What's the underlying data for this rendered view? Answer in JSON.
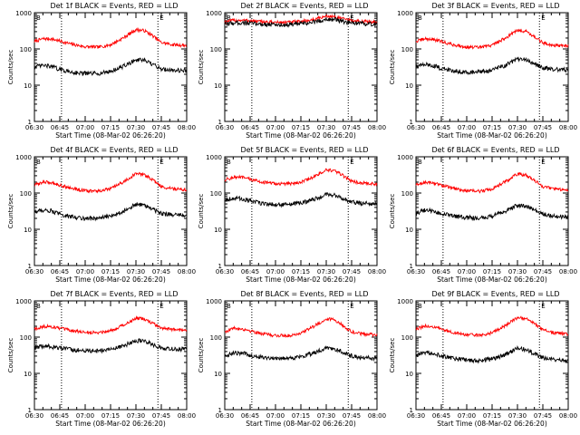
{
  "page": {
    "background": "#ffffff"
  },
  "colors": {
    "events": "#000000",
    "lld": "#ff0000",
    "axis": "#000000"
  },
  "chart_data": [
    {
      "type": "line",
      "title": "Det 1f BLACK = Events, RED = LLD",
      "xlabel": "Start Time (08-Mar-02 06:26:20)",
      "ylabel": "Counts/sec",
      "scale": "log",
      "ylim": [
        1,
        1000
      ],
      "xlim": [
        "06:30",
        "08:00"
      ],
      "x_ticks": [
        "06:30",
        "06:45",
        "07:00",
        "07:15",
        "07:30",
        "07:45",
        "08:00"
      ],
      "y_ticks": [
        "1",
        "10",
        "100",
        "1000"
      ],
      "markers": [
        {
          "label": "B",
          "x": "06:30"
        },
        {
          "label": "E",
          "x": "07:43"
        }
      ],
      "dotted_verticals": [
        "06:46",
        "07:43"
      ],
      "series": [
        {
          "name": "LLD",
          "color": "#ff0000",
          "x": [
            "06:30",
            "06:35",
            "06:40",
            "06:45",
            "06:52",
            "07:00",
            "07:08",
            "07:15",
            "07:22",
            "07:30",
            "07:35",
            "07:40",
            "07:45",
            "07:52",
            "08:00"
          ],
          "values": [
            160,
            190,
            190,
            165,
            135,
            115,
            112,
            130,
            195,
            340,
            320,
            230,
            150,
            130,
            125
          ]
        },
        {
          "name": "Events",
          "color": "#000000",
          "x": [
            "06:30",
            "06:35",
            "06:40",
            "06:45",
            "06:52",
            "07:00",
            "07:08",
            "07:15",
            "07:22",
            "07:30",
            "07:35",
            "07:40",
            "07:45",
            "07:52",
            "08:00"
          ],
          "values": [
            32,
            35,
            33,
            27,
            23,
            21,
            21,
            24,
            32,
            50,
            48,
            37,
            28,
            26,
            25
          ]
        }
      ]
    },
    {
      "type": "line",
      "title": "Det 2f BLACK = Events, RED = LLD",
      "xlabel": "Start Time (08-Mar-02 06:26:20)",
      "ylabel": "Counts/sec",
      "scale": "log",
      "ylim": [
        1,
        1000
      ],
      "xlim": [
        "06:30",
        "08:00"
      ],
      "x_ticks": [
        "06:30",
        "06:45",
        "07:00",
        "07:15",
        "07:30",
        "07:45",
        "08:00"
      ],
      "y_ticks": [
        "1",
        "10",
        "100",
        "1000"
      ],
      "markers": [
        {
          "label": "B",
          "x": "06:30"
        },
        {
          "label": "E",
          "x": "07:43"
        }
      ],
      "dotted_verticals": [
        "06:46",
        "07:43"
      ],
      "series": [
        {
          "name": "LLD",
          "color": "#ff0000",
          "x": [
            "06:30",
            "06:35",
            "06:40",
            "06:45",
            "06:52",
            "07:00",
            "07:08",
            "07:15",
            "07:22",
            "07:30",
            "07:35",
            "07:40",
            "07:45",
            "07:52",
            "08:00"
          ],
          "values": [
            560,
            610,
            620,
            600,
            560,
            540,
            545,
            570,
            640,
            800,
            780,
            680,
            600,
            570,
            560
          ]
        },
        {
          "name": "Events",
          "color": "#000000",
          "x": [
            "06:30",
            "06:35",
            "06:40",
            "06:45",
            "06:52",
            "07:00",
            "07:08",
            "07:15",
            "07:22",
            "07:30",
            "07:35",
            "07:40",
            "07:45",
            "07:52",
            "08:00"
          ],
          "values": [
            480,
            520,
            530,
            510,
            480,
            465,
            465,
            490,
            540,
            660,
            650,
            570,
            510,
            490,
            480
          ]
        }
      ]
    },
    {
      "type": "line",
      "title": "Det 3f BLACK = Events, RED = LLD",
      "xlabel": "Start Time (08-Mar-02 06:26:20)",
      "ylabel": "Counts/sec",
      "scale": "log",
      "ylim": [
        1,
        1000
      ],
      "xlim": [
        "06:30",
        "08:00"
      ],
      "x_ticks": [
        "06:30",
        "06:45",
        "07:00",
        "07:15",
        "07:30",
        "07:45",
        "08:00"
      ],
      "y_ticks": [
        "1",
        "10",
        "100",
        "1000"
      ],
      "markers": [
        {
          "label": "B",
          "x": "06:30"
        },
        {
          "label": "E",
          "x": "07:43"
        }
      ],
      "dotted_verticals": [
        "06:46",
        "07:43"
      ],
      "series": [
        {
          "name": "LLD",
          "color": "#ff0000",
          "x": [
            "06:30",
            "06:35",
            "06:40",
            "06:45",
            "06:52",
            "07:00",
            "07:08",
            "07:15",
            "07:22",
            "07:30",
            "07:35",
            "07:40",
            "07:45",
            "07:52",
            "08:00"
          ],
          "values": [
            160,
            190,
            185,
            160,
            130,
            112,
            110,
            128,
            190,
            330,
            310,
            220,
            145,
            125,
            120
          ]
        },
        {
          "name": "Events",
          "color": "#000000",
          "x": [
            "06:30",
            "06:35",
            "06:40",
            "06:45",
            "06:52",
            "07:00",
            "07:08",
            "07:15",
            "07:22",
            "07:30",
            "07:35",
            "07:40",
            "07:45",
            "07:52",
            "08:00"
          ],
          "values": [
            33,
            37,
            35,
            29,
            25,
            23,
            23,
            26,
            34,
            52,
            50,
            39,
            30,
            27,
            26
          ]
        }
      ]
    },
    {
      "type": "line",
      "title": "Det 4f BLACK = Events, RED = LLD",
      "xlabel": "Start Time (08-Mar-02 06:26:20)",
      "ylabel": "Counts/sec",
      "scale": "log",
      "ylim": [
        1,
        1000
      ],
      "xlim": [
        "06:30",
        "08:00"
      ],
      "x_ticks": [
        "06:30",
        "06:45",
        "07:00",
        "07:15",
        "07:30",
        "07:45",
        "08:00"
      ],
      "y_ticks": [
        "1",
        "10",
        "100",
        "1000"
      ],
      "markers": [
        {
          "label": "B",
          "x": "06:30"
        },
        {
          "label": "E",
          "x": "07:43"
        }
      ],
      "dotted_verticals": [
        "06:46",
        "07:43"
      ],
      "series": [
        {
          "name": "LLD",
          "color": "#ff0000",
          "x": [
            "06:30",
            "06:35",
            "06:40",
            "06:45",
            "06:52",
            "07:00",
            "07:08",
            "07:15",
            "07:22",
            "07:30",
            "07:35",
            "07:40",
            "07:45",
            "07:52",
            "08:00"
          ],
          "values": [
            165,
            200,
            195,
            165,
            135,
            115,
            112,
            130,
            195,
            340,
            320,
            230,
            150,
            130,
            125
          ]
        },
        {
          "name": "Events",
          "color": "#000000",
          "x": [
            "06:30",
            "06:35",
            "06:40",
            "06:45",
            "06:52",
            "07:00",
            "07:08",
            "07:15",
            "07:22",
            "07:30",
            "07:35",
            "07:40",
            "07:45",
            "07:52",
            "08:00"
          ],
          "values": [
            30,
            34,
            32,
            26,
            22,
            20,
            20,
            23,
            31,
            48,
            46,
            36,
            27,
            25,
            24
          ]
        }
      ]
    },
    {
      "type": "line",
      "title": "Det 5f BLACK = Events, RED = LLD",
      "xlabel": "Start Time (08-Mar-02 06:26:20)",
      "ylabel": "Counts/sec",
      "scale": "log",
      "ylim": [
        1,
        1000
      ],
      "xlim": [
        "06:30",
        "08:00"
      ],
      "x_ticks": [
        "06:30",
        "06:45",
        "07:00",
        "07:15",
        "07:30",
        "07:45",
        "08:00"
      ],
      "y_ticks": [
        "1",
        "10",
        "100",
        "1000"
      ],
      "markers": [
        {
          "label": "B",
          "x": "06:30"
        },
        {
          "label": "E",
          "x": "07:43"
        }
      ],
      "dotted_verticals": [
        "06:46",
        "07:43"
      ],
      "series": [
        {
          "name": "LLD",
          "color": "#ff0000",
          "x": [
            "06:30",
            "06:35",
            "06:40",
            "06:45",
            "06:52",
            "07:00",
            "07:08",
            "07:15",
            "07:22",
            "07:30",
            "07:35",
            "07:40",
            "07:45",
            "07:52",
            "08:00"
          ],
          "values": [
            230,
            270,
            270,
            240,
            200,
            180,
            180,
            200,
            270,
            430,
            410,
            300,
            210,
            185,
            175
          ]
        },
        {
          "name": "Events",
          "color": "#000000",
          "x": [
            "06:30",
            "06:35",
            "06:40",
            "06:45",
            "06:52",
            "07:00",
            "07:08",
            "07:15",
            "07:22",
            "07:30",
            "07:35",
            "07:40",
            "07:45",
            "07:52",
            "08:00"
          ],
          "values": [
            65,
            72,
            70,
            60,
            52,
            48,
            48,
            53,
            65,
            90,
            88,
            70,
            56,
            52,
            50
          ]
        }
      ]
    },
    {
      "type": "line",
      "title": "Det 6f BLACK = Events, RED = LLD",
      "xlabel": "Start Time (08-Mar-02 06:26:20)",
      "ylabel": "Counts/sec",
      "scale": "log",
      "ylim": [
        1,
        1000
      ],
      "xlim": [
        "06:30",
        "08:00"
      ],
      "x_ticks": [
        "06:30",
        "06:45",
        "07:00",
        "07:15",
        "07:30",
        "07:45",
        "08:00"
      ],
      "y_ticks": [
        "1",
        "10",
        "100",
        "1000"
      ],
      "markers": [
        {
          "label": "B",
          "x": "06:30"
        },
        {
          "label": "E",
          "x": "07:43"
        }
      ],
      "dotted_verticals": [
        "06:46",
        "07:43"
      ],
      "series": [
        {
          "name": "LLD",
          "color": "#ff0000",
          "x": [
            "06:30",
            "06:35",
            "06:40",
            "06:45",
            "06:52",
            "07:00",
            "07:08",
            "07:15",
            "07:22",
            "07:30",
            "07:35",
            "07:40",
            "07:45",
            "07:52",
            "08:00"
          ],
          "values": [
            165,
            195,
            190,
            165,
            135,
            115,
            112,
            130,
            195,
            335,
            315,
            225,
            150,
            130,
            122
          ]
        },
        {
          "name": "Events",
          "color": "#000000",
          "x": [
            "06:30",
            "06:35",
            "06:40",
            "06:45",
            "06:52",
            "07:00",
            "07:08",
            "07:15",
            "07:22",
            "07:30",
            "07:35",
            "07:40",
            "07:45",
            "07:52",
            "08:00"
          ],
          "values": [
            28,
            33,
            32,
            27,
            23,
            21,
            20,
            23,
            30,
            46,
            44,
            34,
            26,
            23,
            22
          ]
        }
      ]
    },
    {
      "type": "line",
      "title": "Det 7f BLACK = Events, RED = LLD",
      "xlabel": "Start Time (08-Mar-02 06:26:20)",
      "ylabel": "Counts/sec",
      "scale": "log",
      "ylim": [
        1,
        1000
      ],
      "xlim": [
        "06:30",
        "08:00"
      ],
      "x_ticks": [
        "06:30",
        "06:45",
        "07:00",
        "07:15",
        "07:30",
        "07:45",
        "08:00"
      ],
      "y_ticks": [
        "1",
        "10",
        "100",
        "1000"
      ],
      "markers": [
        {
          "label": "B",
          "x": "06:30"
        },
        {
          "label": "E",
          "x": "07:43"
        }
      ],
      "dotted_verticals": [
        "06:46",
        "07:43"
      ],
      "series": [
        {
          "name": "LLD",
          "color": "#ff0000",
          "x": [
            "06:30",
            "06:35",
            "06:40",
            "06:45",
            "06:52",
            "07:00",
            "07:08",
            "07:15",
            "07:22",
            "07:30",
            "07:35",
            "07:40",
            "07:45",
            "07:52",
            "08:00"
          ],
          "values": [
            170,
            195,
            195,
            175,
            150,
            135,
            135,
            150,
            210,
            330,
            315,
            240,
            175,
            160,
            155
          ]
        },
        {
          "name": "Events",
          "color": "#000000",
          "x": [
            "06:30",
            "06:35",
            "06:40",
            "06:45",
            "06:52",
            "07:00",
            "07:08",
            "07:15",
            "07:22",
            "07:30",
            "07:35",
            "07:40",
            "07:45",
            "07:52",
            "08:00"
          ],
          "values": [
            50,
            56,
            55,
            50,
            45,
            42,
            42,
            46,
            56,
            80,
            78,
            62,
            50,
            47,
            46
          ]
        }
      ]
    },
    {
      "type": "line",
      "title": "Det 8f BLACK = Events, RED = LLD",
      "xlabel": "Start Time (08-Mar-02 06:26:20)",
      "ylabel": "Counts/sec",
      "scale": "log",
      "ylim": [
        1,
        1000
      ],
      "xlim": [
        "06:30",
        "08:00"
      ],
      "x_ticks": [
        "06:30",
        "06:45",
        "07:00",
        "07:15",
        "07:30",
        "07:45",
        "08:00"
      ],
      "y_ticks": [
        "1",
        "10",
        "100",
        "1000"
      ],
      "markers": [
        {
          "label": "B",
          "x": "06:30"
        },
        {
          "label": "E",
          "x": "07:43"
        }
      ],
      "dotted_verticals": [
        "06:46",
        "07:43"
      ],
      "series": [
        {
          "name": "LLD",
          "color": "#ff0000",
          "x": [
            "06:30",
            "06:35",
            "06:40",
            "06:45",
            "06:52",
            "07:00",
            "07:08",
            "07:15",
            "07:22",
            "07:30",
            "07:35",
            "07:40",
            "07:45",
            "07:52",
            "08:00"
          ],
          "values": [
            140,
            175,
            170,
            150,
            125,
            110,
            110,
            130,
            190,
            320,
            300,
            210,
            140,
            120,
            115
          ]
        },
        {
          "name": "Events",
          "color": "#000000",
          "x": [
            "06:30",
            "06:35",
            "06:40",
            "06:45",
            "06:52",
            "07:00",
            "07:08",
            "07:15",
            "07:22",
            "07:30",
            "07:35",
            "07:40",
            "07:45",
            "07:52",
            "08:00"
          ],
          "values": [
            30,
            36,
            36,
            32,
            28,
            26,
            26,
            29,
            36,
            50,
            48,
            38,
            30,
            27,
            26
          ]
        }
      ]
    },
    {
      "type": "line",
      "title": "Det 9f BLACK = Events, RED = LLD",
      "xlabel": "Start Time (08-Mar-02 06:26:20)",
      "ylabel": "Counts/sec",
      "scale": "log",
      "ylim": [
        1,
        1000
      ],
      "xlim": [
        "06:30",
        "08:00"
      ],
      "x_ticks": [
        "06:30",
        "06:45",
        "07:00",
        "07:15",
        "07:30",
        "07:45",
        "08:00"
      ],
      "y_ticks": [
        "1",
        "10",
        "100",
        "1000"
      ],
      "markers": [
        {
          "label": "B",
          "x": "06:30"
        },
        {
          "label": "E",
          "x": "07:43"
        }
      ],
      "dotted_verticals": [
        "06:46",
        "07:43"
      ],
      "series": [
        {
          "name": "LLD",
          "color": "#ff0000",
          "x": [
            "06:30",
            "06:35",
            "06:40",
            "06:45",
            "06:52",
            "07:00",
            "07:08",
            "07:15",
            "07:22",
            "07:30",
            "07:35",
            "07:40",
            "07:45",
            "07:52",
            "08:00"
          ],
          "values": [
            165,
            200,
            195,
            165,
            135,
            115,
            112,
            132,
            200,
            345,
            325,
            235,
            155,
            130,
            122
          ]
        },
        {
          "name": "Events",
          "color": "#000000",
          "x": [
            "06:30",
            "06:35",
            "06:40",
            "06:45",
            "06:52",
            "07:00",
            "07:08",
            "07:15",
            "07:22",
            "07:30",
            "07:35",
            "07:40",
            "07:45",
            "07:52",
            "08:00"
          ],
          "values": [
            30,
            38,
            37,
            31,
            26,
            23,
            22,
            25,
            32,
            48,
            46,
            35,
            27,
            24,
            23
          ]
        }
      ]
    }
  ]
}
